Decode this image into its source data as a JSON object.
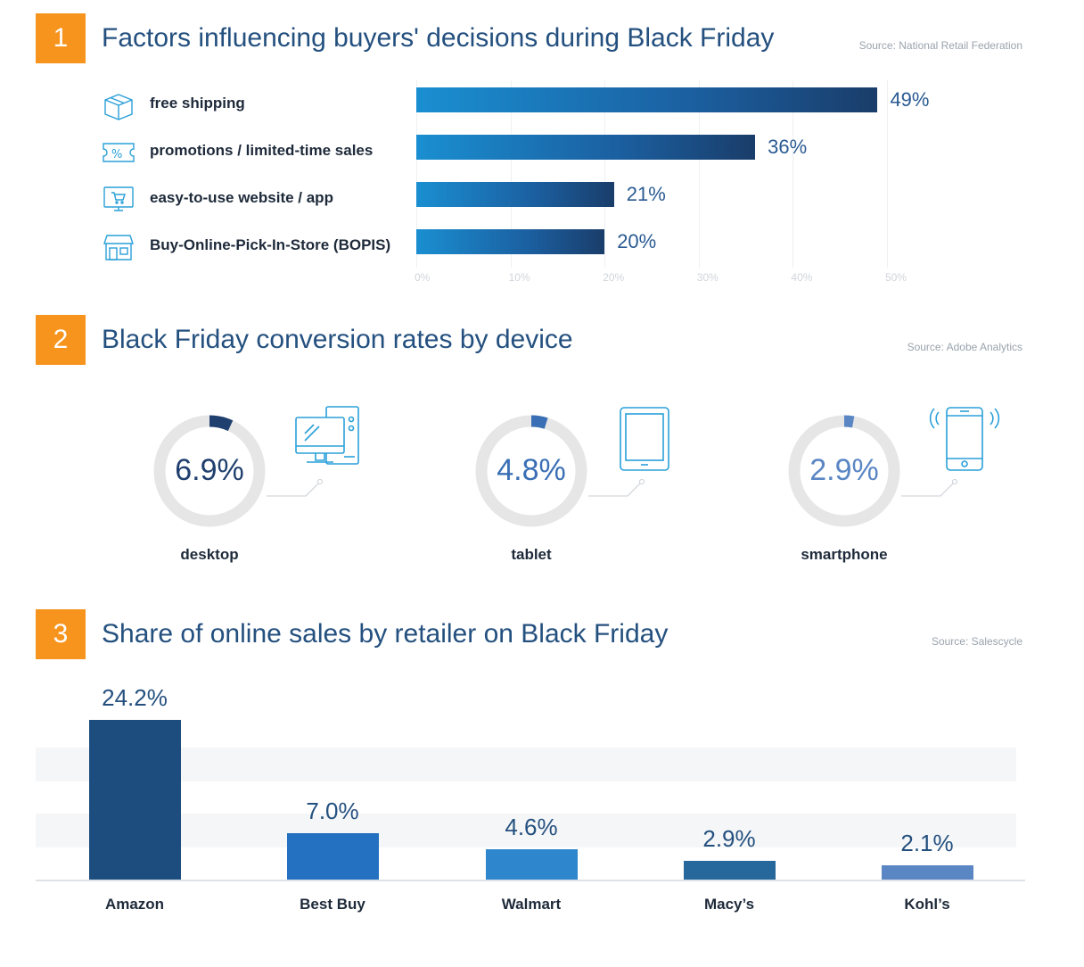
{
  "section1": {
    "number": "1",
    "title": "Factors influencing buyers' decisions during Black Friday",
    "source": "Source: National Retail Federation"
  },
  "section2": {
    "number": "2",
    "title": "Black Friday conversion rates by device",
    "source": "Source: Adobe Analytics"
  },
  "section3": {
    "number": "3",
    "title": "Share of online sales by retailer on Black Friday",
    "source": "Source: Salescycle"
  },
  "colors": {
    "accent": "#f7941d",
    "title": "#24507f",
    "bar_dark": "#1a3d6a",
    "bar_light": "#1a8fd1"
  },
  "chart_data": [
    {
      "type": "bar",
      "orientation": "horizontal",
      "title": "Factors influencing buyers' decisions during Black Friday",
      "categories": [
        "free shipping",
        "promotions / limited-time sales",
        "easy-to-use website / app",
        "Buy-Online-Pick-In-Store (BOPIS)"
      ],
      "icons": [
        "box-icon",
        "coupon-icon",
        "shopping-cart-monitor-icon",
        "storefront-icon"
      ],
      "values": [
        49,
        36,
        21,
        20
      ],
      "value_labels": [
        "49%",
        "36%",
        "21%",
        "20%"
      ],
      "xlim": [
        0,
        50
      ],
      "xticks": [
        "0%",
        "10%",
        "20%",
        "30%",
        "40%",
        "50%"
      ]
    },
    {
      "type": "pie",
      "title": "Black Friday conversion rates by device",
      "categories": [
        "desktop",
        "tablet",
        "smartphone"
      ],
      "icons": [
        "desktop-computer-icon",
        "tablet-icon",
        "smartphone-icon"
      ],
      "values": [
        6.9,
        4.8,
        2.9
      ],
      "value_labels": [
        "6.9%",
        "4.8%",
        "2.9%"
      ],
      "colors": [
        "#1f3f6e",
        "#3a6fb5",
        "#5a86c4"
      ]
    },
    {
      "type": "bar",
      "title": "Share of online sales by retailer on Black Friday",
      "categories": [
        "Amazon",
        "Best Buy",
        "Walmart",
        "Macy’s",
        "Kohl’s"
      ],
      "values": [
        24.2,
        7.0,
        4.6,
        2.9,
        2.1
      ],
      "value_labels": [
        "24.2%",
        "7.0%",
        "4.6%",
        "2.9%",
        "2.1%"
      ],
      "ylim": [
        0,
        24.2
      ],
      "colors": [
        "#1c4d7e",
        "#2371c0",
        "#2e86cc",
        "#26679c",
        "#5b86c4"
      ]
    }
  ]
}
